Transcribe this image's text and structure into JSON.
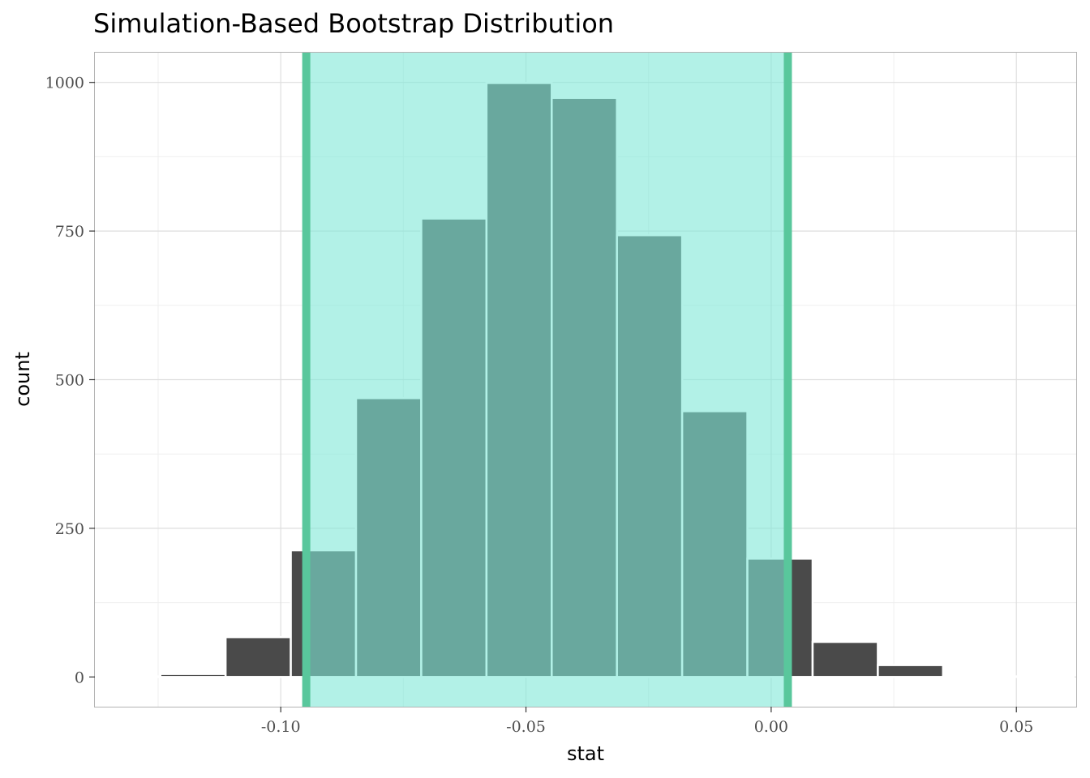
{
  "chart_data": {
    "type": "bar",
    "title": "Simulation-Based Bootstrap Distribution",
    "xlabel": "stat",
    "ylabel": "count",
    "xlim": [
      -0.1379,
      0.0622
    ],
    "ylim": [
      -50,
      1050
    ],
    "x_ticks": [
      {
        "value": -0.1,
        "label": "-0.10"
      },
      {
        "value": -0.05,
        "label": "-0.05"
      },
      {
        "value": 0.0,
        "label": "0.00"
      },
      {
        "value": 0.05,
        "label": "0.05"
      }
    ],
    "y_ticks": [
      {
        "value": 0,
        "label": "0"
      },
      {
        "value": 250,
        "label": "250"
      },
      {
        "value": 500,
        "label": "500"
      },
      {
        "value": 750,
        "label": "750"
      },
      {
        "value": 1000,
        "label": "1000"
      }
    ],
    "bin_width": 0.0133,
    "bins": [
      {
        "x": -0.1312,
        "count": 1
      },
      {
        "x": -0.1179,
        "count": 5
      },
      {
        "x": -0.1046,
        "count": 67
      },
      {
        "x": -0.0913,
        "count": 213
      },
      {
        "x": -0.078,
        "count": 469
      },
      {
        "x": -0.0647,
        "count": 771
      },
      {
        "x": -0.0514,
        "count": 999
      },
      {
        "x": -0.0381,
        "count": 974
      },
      {
        "x": -0.0248,
        "count": 743
      },
      {
        "x": -0.0115,
        "count": 447
      },
      {
        "x": 0.0018,
        "count": 199
      },
      {
        "x": 0.0151,
        "count": 59
      },
      {
        "x": 0.0284,
        "count": 20
      },
      {
        "x": 0.0417,
        "count": 1
      },
      {
        "x": 0.055,
        "count": 1
      }
    ],
    "confidence_interval": {
      "lower": -0.0948,
      "upper": 0.0034
    },
    "colors": {
      "bar": "#4a4a4a",
      "bar_outline": "#ffffff",
      "ci_fill": "#7fe7d7",
      "ci_line": "#59c79c",
      "panel_border": "#b3b3b3",
      "grid_major": "#dedede",
      "grid_minor": "#efefef"
    },
    "grid": true,
    "legend": "none"
  }
}
